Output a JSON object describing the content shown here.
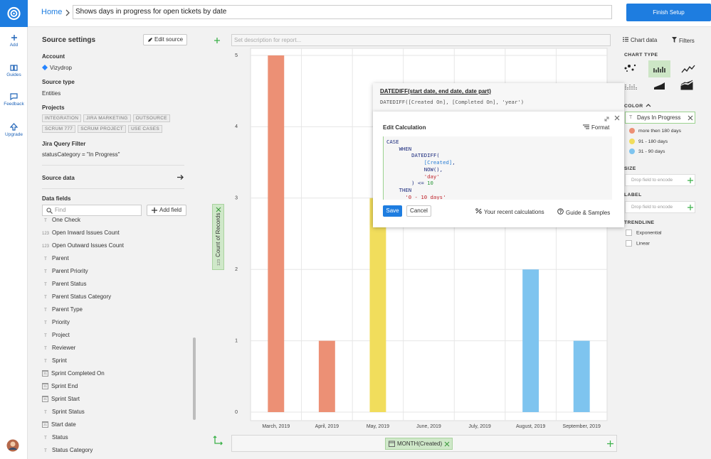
{
  "nav": {
    "items": [
      "Add",
      "Guides",
      "Feedback",
      "Upgrade"
    ]
  },
  "header": {
    "breadcrumb": "Home",
    "title": "Shows days in progress for open tickets by date",
    "button": "Finish Setup"
  },
  "source": {
    "heading": "Source settings",
    "edit_button": "Edit source",
    "account_label": "Account",
    "account": "Vizydrop",
    "type_label": "Source type",
    "type": "Entities",
    "projects_label": "Projects",
    "projects": [
      "INTEGRATION",
      "JIRA MARKETING",
      "OUTSOURCE",
      "SCRUM 777",
      "SCRUM PROJECT",
      "USE CASES"
    ],
    "filter_label": "Jira Query Filter",
    "filter": "statusCategory = \"In Progress\"",
    "data_link": "Source data",
    "fields_label": "Data fields",
    "search_placeholder": "Find",
    "add_field": "Add field",
    "fields": [
      {
        "icon": "T",
        "name": "One Check"
      },
      {
        "icon": "123",
        "name": "Open Inward Issues Count"
      },
      {
        "icon": "123",
        "name": "Open Outward Issues Count"
      },
      {
        "icon": "T",
        "name": "Parent"
      },
      {
        "icon": "T",
        "name": "Parent Priority"
      },
      {
        "icon": "T",
        "name": "Parent Status"
      },
      {
        "icon": "T",
        "name": "Parent Status Category"
      },
      {
        "icon": "T",
        "name": "Parent Type"
      },
      {
        "icon": "T",
        "name": "Priority"
      },
      {
        "icon": "T",
        "name": "Project"
      },
      {
        "icon": "T",
        "name": "Reviewer"
      },
      {
        "icon": "T",
        "name": "Sprint"
      },
      {
        "icon": "31",
        "name": "Sprint Completed On"
      },
      {
        "icon": "31",
        "name": "Sprint End"
      },
      {
        "icon": "31",
        "name": "Sprint Start"
      },
      {
        "icon": "T",
        "name": "Sprint Status"
      },
      {
        "icon": "31",
        "name": "Start date"
      },
      {
        "icon": "T",
        "name": "Status"
      },
      {
        "icon": "T",
        "name": "Status Category"
      }
    ]
  },
  "report": {
    "description_placeholder": "Set description for report...",
    "y_field_icon": "123",
    "y_field": "Count of Records",
    "x_field": "MONTH(Created)"
  },
  "chart_data": {
    "type": "bar",
    "categories": [
      "March, 2019",
      "April, 2019",
      "May, 2019",
      "June, 2019",
      "July, 2019",
      "August, 2019",
      "September, 2019"
    ],
    "series": [
      {
        "name": "more then 180 days",
        "color": "#ec9075",
        "values": [
          5,
          1,
          null,
          null,
          null,
          null,
          null
        ]
      },
      {
        "name": "91 - 180 days",
        "color": "#f1dd5c",
        "values": [
          null,
          null,
          3,
          null,
          null,
          null,
          null
        ]
      },
      {
        "name": "31 - 90 days",
        "color": "#7ec4ef",
        "values": [
          null,
          null,
          null,
          null,
          null,
          2,
          1
        ]
      }
    ],
    "ylim": [
      0,
      5
    ],
    "yticks": [
      0,
      1,
      2,
      3,
      4,
      5
    ],
    "grid": true
  },
  "calc_popup": {
    "signature": "DATEDIFF(start date, end date, date part)",
    "example": "DATEDIFF([Created On], [Completed On], 'year')",
    "heading": "Edit Calculation",
    "format": "Format",
    "code": [
      "CASE",
      "    WHEN",
      "        DATEDIFF(",
      "            [Created],",
      "            NOW(),",
      "            'day'",
      "        ) <= 10",
      "    THEN",
      "      '0 - 10 days'"
    ],
    "save": "Save",
    "cancel": "Cancel",
    "recent": "Your recent calculations",
    "guide": "Guide & Samples"
  },
  "settings": {
    "chart_data_tab": "Chart data",
    "filters_tab": "Filters",
    "chart_type_label": "CHART TYPE",
    "color_label": "COLOR",
    "color_field": "Days In Progress",
    "size_label": "SIZE",
    "size_drop": "Drop field to encode",
    "label_label": "LABEL",
    "label_drop": "Drop field to encode",
    "trendline_label": "TRENDLINE",
    "trendlines": [
      "Exponential",
      "Linear"
    ]
  }
}
